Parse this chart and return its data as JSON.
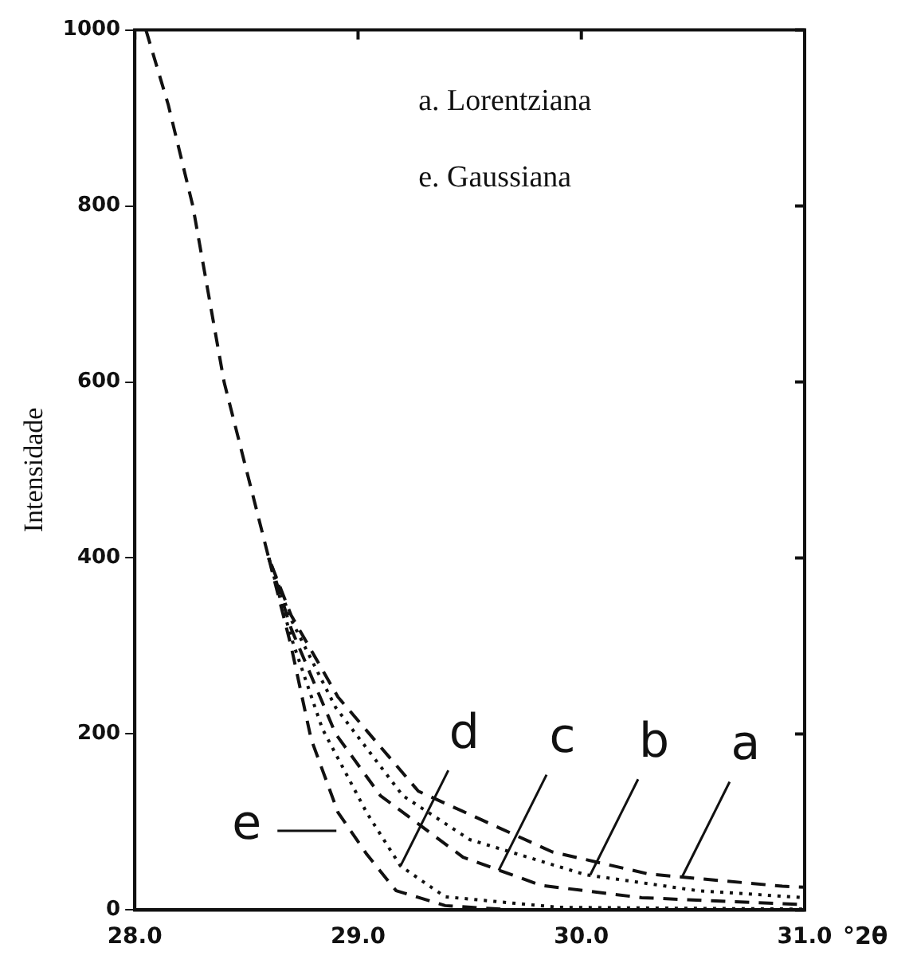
{
  "chart_data": {
    "type": "line",
    "xlabel": "°2θ",
    "ylabel": "Intensidade",
    "xlim": [
      28,
      31
    ],
    "xticks": [
      {
        "value": 28,
        "label": "28.0"
      },
      {
        "value": 29,
        "label": "29.0"
      },
      {
        "value": 30,
        "label": "30.0"
      },
      {
        "value": 31,
        "label": "31.0"
      }
    ],
    "ylim": [
      0,
      1000
    ],
    "yticks": [
      0,
      200,
      400,
      600,
      800,
      1000
    ],
    "grid": false,
    "series": [
      {
        "color": "#111111",
        "line_style": "dashed",
        "x": [
          28.05,
          28.15,
          28.26,
          28.4,
          28.6,
          28.7,
          28.91,
          29.27,
          29.87,
          30.3,
          30.9,
          31.0
        ],
        "values": [
          1000,
          915,
          800,
          600,
          400,
          335,
          242,
          135,
          66,
          41,
          27,
          26
        ]
      },
      {
        "color": "#111111",
        "line_style": "dotted",
        "x": [
          28.6,
          28.7,
          28.9,
          29.2,
          29.5,
          30.02,
          30.52,
          31.0
        ],
        "values": [
          400,
          330,
          230,
          130,
          80,
          40,
          22,
          14
        ]
      },
      {
        "color": "#111111",
        "line_style": "dashed",
        "x": [
          28.6,
          28.7,
          28.9,
          29.1,
          29.47,
          29.82,
          30.27,
          31.0
        ],
        "values": [
          400,
          320,
          200,
          130,
          60,
          28,
          14,
          6
        ]
      },
      {
        "color": "#111111",
        "line_style": "dotted",
        "x": [
          28.6,
          28.7,
          28.84,
          29.04,
          29.19,
          29.39,
          29.9,
          31.0
        ],
        "values": [
          400,
          310,
          206,
          110,
          50,
          15,
          3,
          1
        ]
      },
      {
        "color": "#111111",
        "line_style": "dashed",
        "x": [
          28.6,
          28.7,
          28.79,
          28.91,
          29.04,
          29.17,
          29.39,
          29.7,
          30.0
        ],
        "values": [
          400,
          300,
          194,
          111,
          63,
          22,
          5,
          0,
          0
        ]
      }
    ],
    "annotations": [
      "a. Lorentziana",
      "e. Gaussiana",
      {
        "text": "d",
        "x": 29.19,
        "y": 50
      },
      {
        "text": "c",
        "x": 29.63,
        "y": 45
      },
      {
        "text": "b",
        "x": 30.04,
        "y": 40
      },
      {
        "text": "a",
        "x": 30.45,
        "y": 37
      },
      {
        "text": "e",
        "x": 28.96,
        "y": 90
      }
    ]
  }
}
